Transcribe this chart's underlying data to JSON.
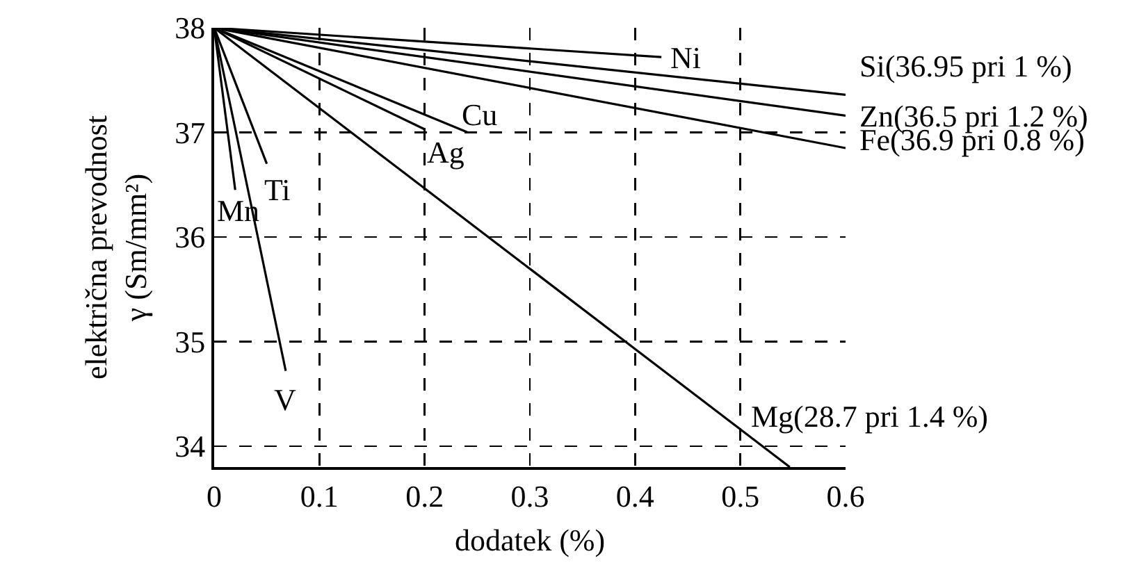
{
  "chart_data": {
    "type": "line",
    "xlabel": "dodatek (%)",
    "ylabel": "električna prevodnost\nγ (Sm/mm²)",
    "xlim": [
      0,
      0.6
    ],
    "ylim": [
      33.8,
      38
    ],
    "xticks": [
      0,
      0.1,
      0.2,
      0.3,
      0.4,
      0.5,
      0.6
    ],
    "yticks": [
      34,
      35,
      36,
      37,
      38
    ],
    "grid": true,
    "legend": false,
    "marker": "none",
    "line_style": "solid",
    "series": [
      {
        "name": "Ni",
        "color": "#000000",
        "x": [
          0,
          0.425
        ],
        "values": [
          38,
          37.72
        ]
      },
      {
        "name": "Si(36.95 pri 1 %)",
        "color": "#000000",
        "x": [
          0,
          0.6
        ],
        "values": [
          38,
          37.36
        ]
      },
      {
        "name": "Zn(36.5 pri 1.2 %)",
        "color": "#000000",
        "x": [
          0,
          0.6
        ],
        "values": [
          38,
          37.16
        ]
      },
      {
        "name": "Fe(36.9 pri 0.8 %)",
        "color": "#000000",
        "x": [
          0,
          0.6
        ],
        "values": [
          38,
          36.85
        ]
      },
      {
        "name": "Cu",
        "color": "#000000",
        "x": [
          0,
          0.241
        ],
        "values": [
          38,
          37.0
        ]
      },
      {
        "name": "Ag",
        "color": "#000000",
        "x": [
          0,
          0.2
        ],
        "values": [
          38,
          37.03
        ]
      },
      {
        "name": "Mg(28.7 pri 1.4 %)",
        "color": "#000000",
        "x": [
          0,
          0.547
        ],
        "values": [
          38,
          33.8
        ]
      },
      {
        "name": "Ti",
        "color": "#000000",
        "x": [
          0,
          0.05
        ],
        "values": [
          38,
          36.7
        ]
      },
      {
        "name": "Mn",
        "color": "#000000",
        "x": [
          0,
          0.02
        ],
        "values": [
          38,
          36.45
        ]
      },
      {
        "name": "V",
        "color": "#000000",
        "x": [
          0,
          0.068
        ],
        "values": [
          38,
          34.72
        ]
      }
    ]
  }
}
